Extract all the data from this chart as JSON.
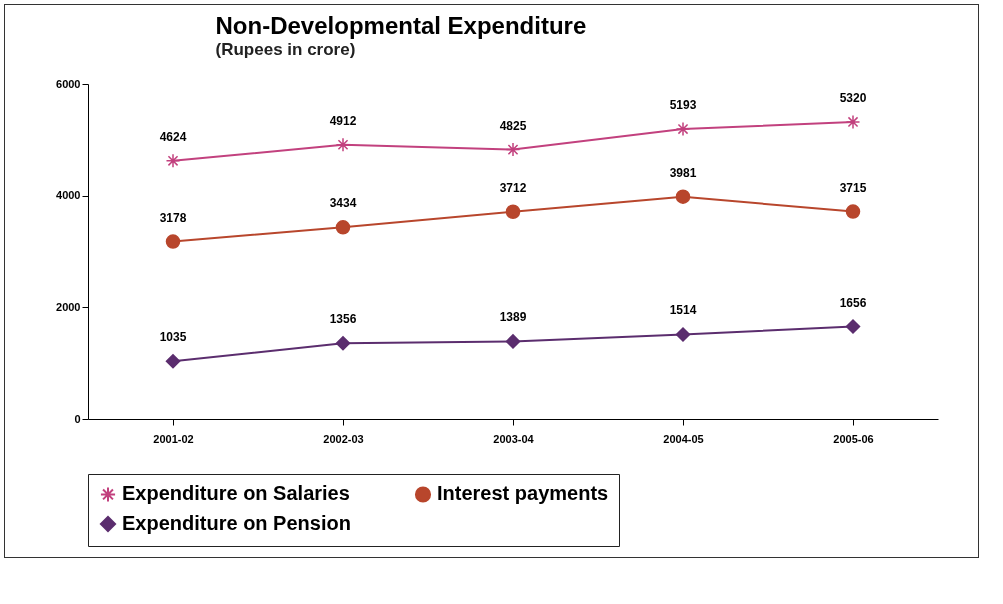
{
  "chart_data": {
    "type": "line",
    "title": "Non-Developmental Expenditure",
    "subtitle": "(Rupees in crore)",
    "categories": [
      "2001-02",
      "2002-03",
      "2003-04",
      "2004-05",
      "2005-06"
    ],
    "series": [
      {
        "name": "Expenditure on Salaries",
        "color": "#c2417e",
        "marker": "cross",
        "values": [
          4624,
          4912,
          4825,
          5193,
          5320
        ]
      },
      {
        "name": "Interest payments",
        "color": "#b8462c",
        "marker": "circle",
        "values": [
          3178,
          3434,
          3712,
          3981,
          3715
        ]
      },
      {
        "name": "Expenditure on Pension",
        "color": "#5b2d6e",
        "marker": "diamond",
        "values": [
          1035,
          1356,
          1389,
          1514,
          1656
        ]
      }
    ],
    "ylim": [
      0,
      6000
    ],
    "yticks": [
      0,
      2000,
      4000,
      6000
    ],
    "grid": false,
    "legend": "bottom",
    "data_labels": true
  }
}
